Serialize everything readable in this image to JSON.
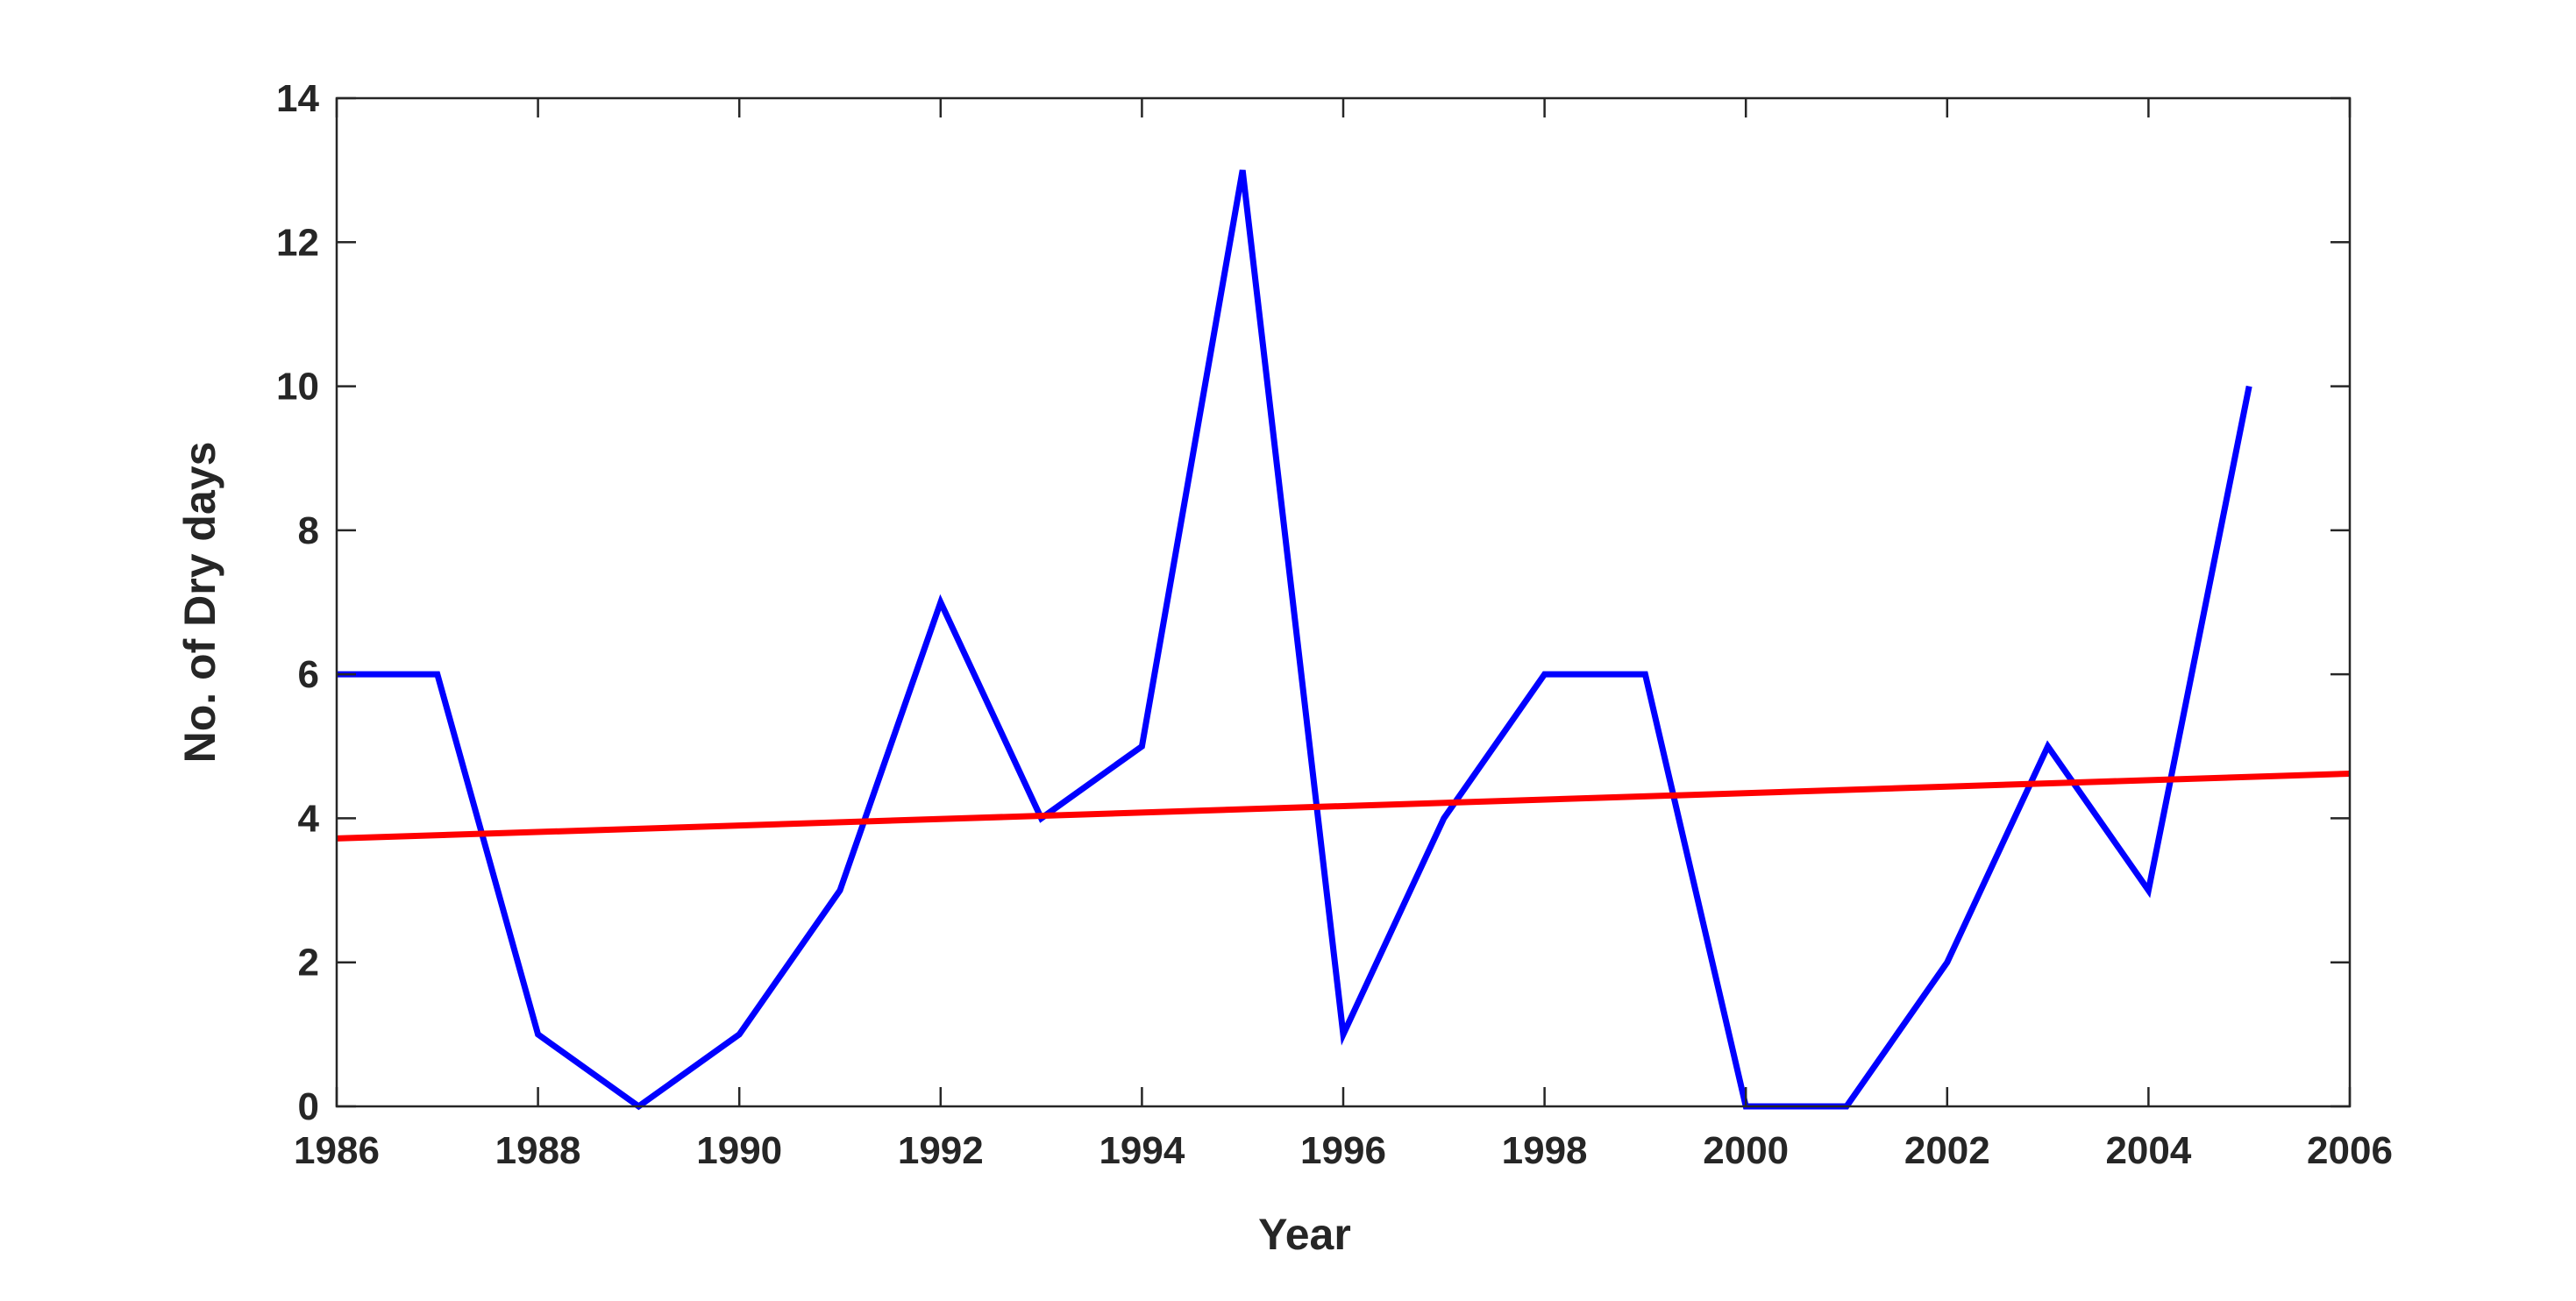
{
  "chart_data": {
    "type": "line",
    "title": "",
    "xlabel": "Year",
    "ylabel": "No. of Dry days",
    "xlim": [
      1986,
      2006
    ],
    "ylim": [
      0,
      14
    ],
    "xticks": [
      1986,
      1988,
      1990,
      1992,
      1994,
      1996,
      1998,
      2000,
      2002,
      2004,
      2006
    ],
    "yticks": [
      0,
      2,
      4,
      6,
      8,
      10,
      12,
      14
    ],
    "grid": false,
    "legend": "none",
    "series": [
      {
        "color": "#0000ff",
        "x": [
          1986,
          1987,
          1988,
          1989,
          1990,
          1991,
          1992,
          1993,
          1994,
          1995,
          1996,
          1997,
          1998,
          1999,
          2000,
          2001,
          2002,
          2003,
          2004,
          2005
        ],
        "values": [
          6,
          6,
          1,
          0,
          1,
          3,
          7,
          4,
          5,
          13,
          1,
          4,
          6,
          6,
          0,
          0,
          2,
          5,
          3,
          10
        ]
      },
      {
        "color": "#ff0000",
        "x": [
          1986,
          2006
        ],
        "values": [
          3.72,
          4.62
        ]
      }
    ]
  }
}
